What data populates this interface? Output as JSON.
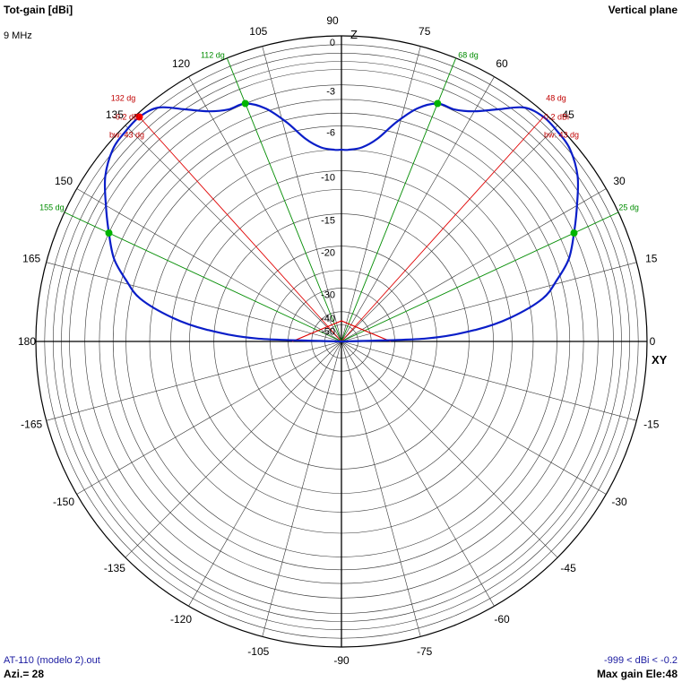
{
  "header": {
    "title": "Tot-gain [dBi]",
    "plane": "Vertical plane",
    "frequency": "9 MHz"
  },
  "footer": {
    "file": "AT-110 (modelo 2).out",
    "azimuth": "Azi.= 28",
    "range": "-999 < dBi < -0.2",
    "max_gain": "Max gain Ele:48"
  },
  "colors": {
    "pattern": "#0a1ec8",
    "grid": "#000000",
    "beamwidth_marker": "#008c00",
    "max_marker": "#e00000"
  },
  "chart_data": {
    "type": "polar",
    "axis_labels": {
      "z": "Z",
      "xy": "XY"
    },
    "angle_tick_labels": [
      {
        "deg": 0,
        "label": "0"
      },
      {
        "deg": 15,
        "label": "15"
      },
      {
        "deg": 30,
        "label": "30"
      },
      {
        "deg": 45,
        "label": "45"
      },
      {
        "deg": 60,
        "label": "60"
      },
      {
        "deg": 75,
        "label": "75"
      },
      {
        "deg": 90,
        "label": "90"
      },
      {
        "deg": 105,
        "label": "105"
      },
      {
        "deg": 120,
        "label": "120"
      },
      {
        "deg": 135,
        "label": "135"
      },
      {
        "deg": 150,
        "label": "150"
      },
      {
        "deg": 165,
        "label": "165"
      },
      {
        "deg": 180,
        "label": "180"
      },
      {
        "deg": -15,
        "label": "-15"
      },
      {
        "deg": -30,
        "label": "-30"
      },
      {
        "deg": -45,
        "label": "-45"
      },
      {
        "deg": -60,
        "label": "-60"
      },
      {
        "deg": -75,
        "label": "-75"
      },
      {
        "deg": -90,
        "label": "-90"
      },
      {
        "deg": -105,
        "label": "-105"
      },
      {
        "deg": -120,
        "label": "-120"
      },
      {
        "deg": -135,
        "label": "-135"
      },
      {
        "deg": -150,
        "label": "-150"
      },
      {
        "deg": -165,
        "label": "-165"
      }
    ],
    "radial_ticks": [
      {
        "value": 0,
        "label": "0"
      },
      {
        "value": -3,
        "label": "-3"
      },
      {
        "value": -6,
        "label": "-6"
      },
      {
        "value": -10,
        "label": "-10"
      },
      {
        "value": -15,
        "label": "-15"
      },
      {
        "value": -20,
        "label": "-20"
      },
      {
        "value": -30,
        "label": "-30"
      },
      {
        "value": -40,
        "label": "-40"
      },
      {
        "value": -50,
        "label": "-50"
      }
    ],
    "grid_rings_db": [
      -0.5,
      -1,
      -1.5,
      -2,
      -3,
      -4,
      -5,
      -6,
      -8,
      -10,
      -12,
      -15,
      -20,
      -25,
      -30,
      -40,
      -50
    ],
    "pattern": {
      "elevation_deg": [
        0,
        2,
        5,
        8,
        12,
        16,
        20,
        25,
        30,
        35,
        40,
        44,
        48,
        52,
        56,
        60,
        64,
        68,
        72,
        76,
        80,
        84,
        88,
        90
      ],
      "gain_dbi": [
        -999,
        -22,
        -14,
        -10,
        -6.8,
        -5.3,
        -4.0,
        -3.0,
        -2.0,
        -1.0,
        -0.4,
        -0.25,
        -0.2,
        -0.5,
        -1.5,
        -2.4,
        -2.9,
        -3.0,
        -3.8,
        -5.2,
        -6.8,
        -7.7,
        -8.0,
        -8.0
      ]
    },
    "markers": {
      "max": [
        {
          "angle_deg": 48,
          "gain_dbi": -0.2,
          "angle_label": "48 dg",
          "gain_label": "-0.2 dBi",
          "bw_label": "bw: 43 dg"
        },
        {
          "angle_deg": 132,
          "gain_dbi": -0.2,
          "angle_label": "132 dg",
          "gain_label": "-0.2 dBi",
          "bw_label": "bw: 43 dg"
        }
      ],
      "beamwidth": [
        {
          "angle_deg": 25,
          "gain_dbi": -3.0,
          "label": "25 dg"
        },
        {
          "angle_deg": 68,
          "gain_dbi": -3.0,
          "label": "68 dg"
        },
        {
          "angle_deg": 112,
          "gain_dbi": -3.0,
          "label": "112 dg"
        },
        {
          "angle_deg": 155,
          "gain_dbi": -3.0,
          "label": "155 dg"
        }
      ]
    }
  }
}
